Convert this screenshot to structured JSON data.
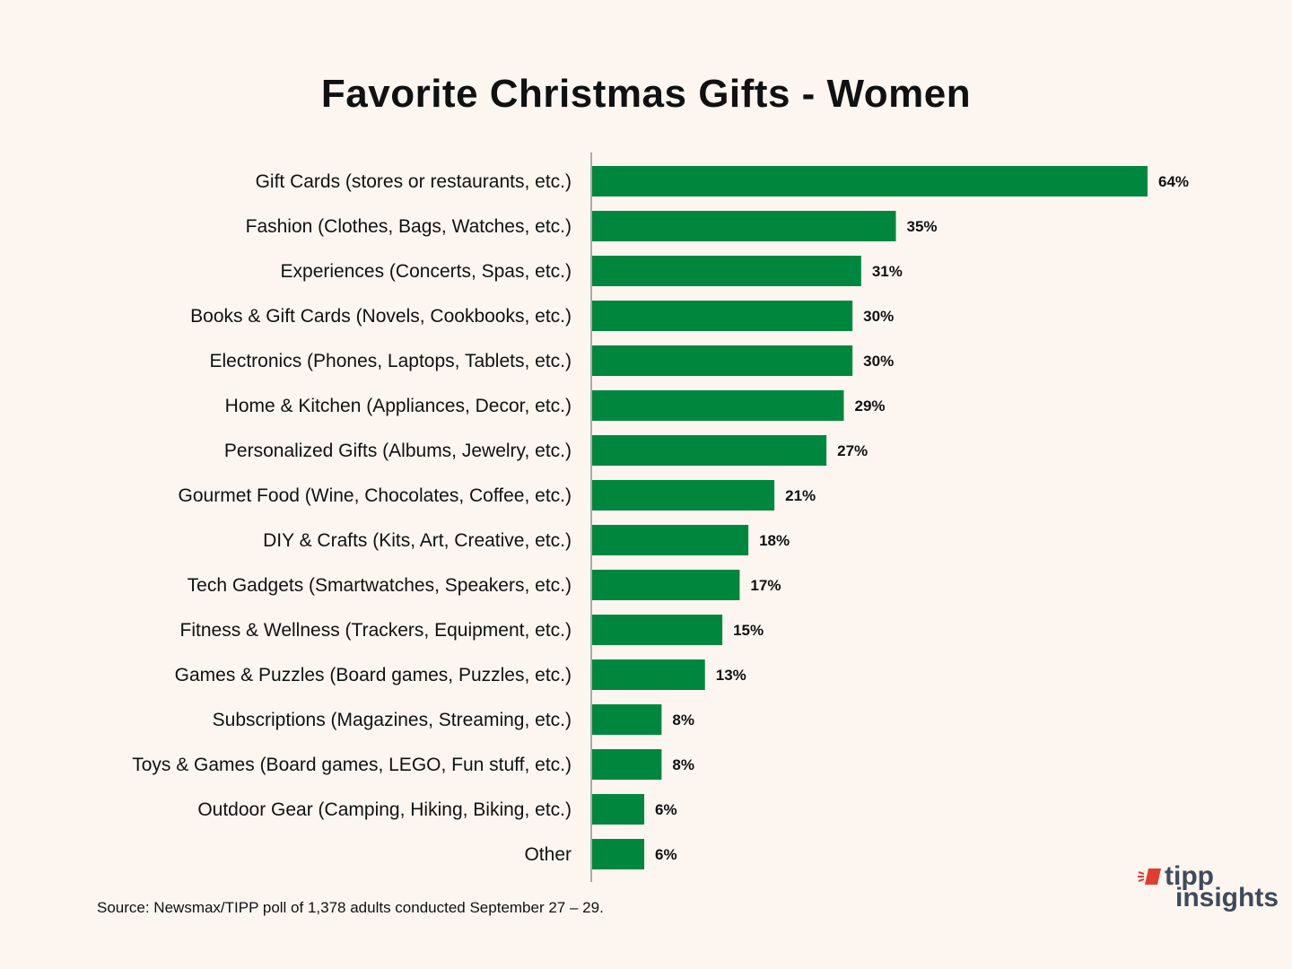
{
  "chart_data": {
    "type": "bar",
    "orientation": "horizontal",
    "title": "Favorite Christmas Gifts - Women",
    "categories": [
      "Gift Cards (stores or restaurants, etc.)",
      "Fashion (Clothes, Bags, Watches, etc.)",
      "Experiences (Concerts, Spas, etc.)",
      "Books & Gift Cards (Novels, Cookbooks, etc.)",
      "Electronics (Phones, Laptops, Tablets, etc.)",
      "Home & Kitchen (Appliances, Decor, etc.)",
      "Personalized Gifts (Albums, Jewelry, etc.)",
      "Gourmet Food (Wine, Chocolates, Coffee, etc.)",
      "DIY & Crafts (Kits, Art, Creative, etc.)",
      "Tech Gadgets (Smartwatches, Speakers, etc.)",
      "Fitness & Wellness (Trackers, Equipment, etc.)",
      "Games & Puzzles (Board games, Puzzles, etc.)",
      "Subscriptions (Magazines, Streaming, etc.)",
      "Toys & Games (Board games, LEGO, Fun stuff, etc.)",
      "Outdoor Gear (Camping, Hiking, Biking, etc.)",
      "Other"
    ],
    "values": [
      64,
      35,
      31,
      30,
      30,
      29,
      27,
      21,
      18,
      17,
      15,
      13,
      8,
      8,
      6,
      6
    ],
    "value_labels": [
      "64%",
      "35%",
      "31%",
      "30%",
      "30%",
      "29%",
      "27%",
      "21%",
      "18%",
      "17%",
      "15%",
      "13%",
      "8%",
      "8%",
      "6%",
      "6%"
    ],
    "xlim": [
      0,
      64
    ],
    "xlabel": "",
    "ylabel": "",
    "grid": false,
    "legend": "none",
    "bar_color": "#00873e",
    "axis_color": "#aaaaaa"
  },
  "source": "Source: Newsmax/TIPP poll of 1,378 adults conducted September 27 – 29.",
  "logo": {
    "line1": "tipp",
    "line2": "insights",
    "text_color": "#3f4a5c",
    "accent_color": "#e03c31"
  }
}
